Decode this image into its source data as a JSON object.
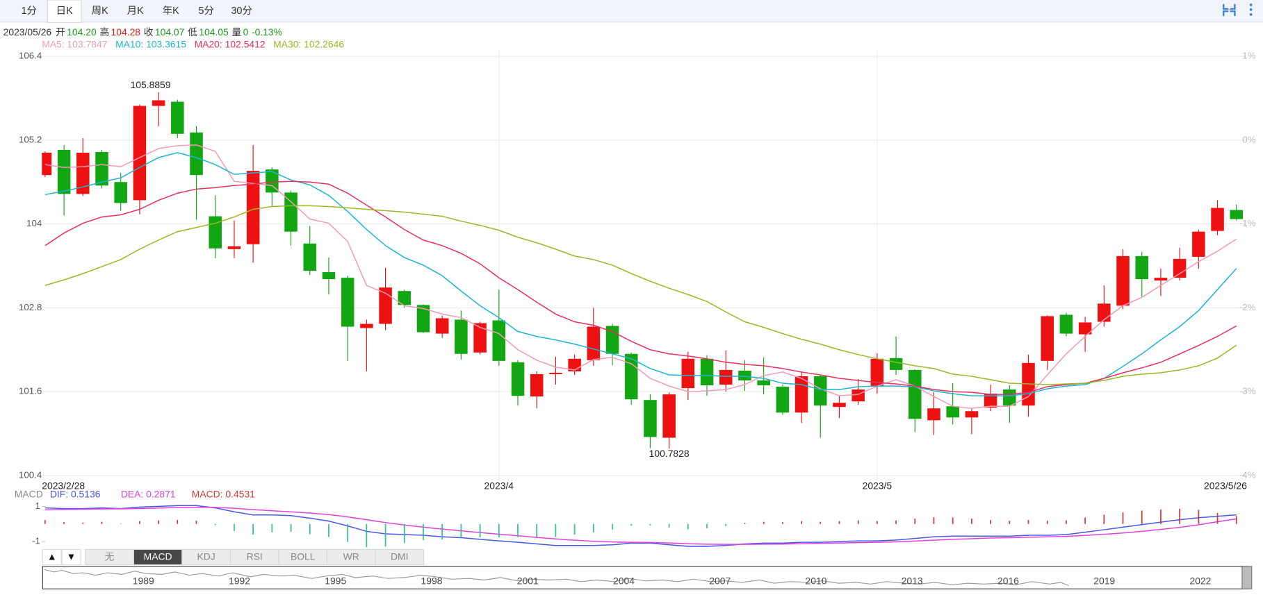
{
  "toolbar": {
    "tabs": [
      "1分",
      "日K",
      "周K",
      "月K",
      "年K",
      "5分",
      "30分"
    ],
    "active": 1
  },
  "quote": {
    "date": "2023/05/26",
    "fields": [
      {
        "label": "开",
        "value": "104.20",
        "color": "#1a9a1a"
      },
      {
        "label": "高",
        "value": "104.28",
        "color": "#e01818"
      },
      {
        "label": "收",
        "value": "104.07",
        "color": "#1a9a1a"
      },
      {
        "label": "低",
        "value": "104.05",
        "color": "#1a9a1a"
      },
      {
        "label": "量",
        "value": "0",
        "color": "#1a9a1a"
      }
    ],
    "change": "-0.13%",
    "change_color": "#1a9a1a"
  },
  "chart_data": [
    {
      "type": "candlestick",
      "categories": [
        "2023/2/28",
        null,
        null,
        null,
        null,
        null,
        null,
        null,
        null,
        null,
        null,
        null,
        null,
        null,
        null,
        null,
        null,
        null,
        null,
        null,
        null,
        null,
        null,
        null,
        "2023/4",
        null,
        null,
        null,
        null,
        null,
        null,
        null,
        null,
        null,
        null,
        null,
        null,
        null,
        null,
        null,
        null,
        null,
        null,
        null,
        "2023/5",
        null,
        null,
        null,
        null,
        null,
        null,
        null,
        null,
        null,
        null,
        null,
        null,
        null,
        null,
        null,
        null,
        null,
        null,
        "2023/5/26"
      ],
      "open": [
        104.7,
        105.06,
        104.43,
        105.03,
        104.6,
        104.34,
        105.69,
        105.75,
        105.31,
        104.11,
        103.64,
        103.71,
        104.78,
        104.45,
        103.72,
        103.31,
        103.23,
        102.51,
        102.57,
        103.04,
        102.84,
        102.43,
        102.63,
        102.16,
        102.62,
        102.02,
        101.53,
        101.85,
        101.89,
        102.05,
        102.54,
        102.14,
        101.48,
        100.94,
        101.65,
        102.07,
        101.7,
        101.9,
        101.76,
        101.67,
        101.3,
        101.82,
        101.38,
        101.46,
        101.68,
        102.08,
        101.91,
        101.19,
        101.39,
        101.23,
        101.37,
        101.63,
        101.4,
        102.04,
        102.7,
        102.42,
        102.6,
        102.83,
        103.54,
        103.19,
        103.23,
        103.53,
        103.9,
        104.2
      ],
      "high": [
        105.04,
        105.13,
        105.23,
        105.06,
        104.73,
        105.71,
        105.8859,
        105.78,
        105.4,
        104.41,
        104.05,
        105.13,
        104.81,
        104.48,
        103.97,
        103.52,
        103.26,
        102.63,
        103.37,
        103.06,
        102.85,
        102.69,
        102.76,
        102.6,
        103.06,
        102.05,
        101.89,
        102.1,
        102.13,
        102.8,
        102.57,
        102.16,
        101.56,
        101.59,
        102.17,
        102.12,
        102.19,
        102.05,
        102.09,
        101.7,
        101.89,
        101.84,
        101.54,
        101.78,
        102.15,
        102.39,
        101.92,
        101.59,
        101.72,
        101.36,
        101.7,
        101.69,
        102.13,
        102.69,
        102.73,
        102.67,
        103.12,
        103.64,
        103.6,
        103.36,
        103.66,
        103.92,
        104.34,
        104.28
      ],
      "low": [
        104.67,
        104.12,
        104.4,
        104.51,
        104.19,
        104.14,
        105.4,
        105.23,
        104.06,
        103.51,
        103.51,
        103.45,
        104.26,
        103.69,
        103.27,
        102.99,
        102.04,
        101.89,
        102.48,
        102.8,
        102.44,
        102.37,
        102.06,
        102.13,
        101.97,
        101.4,
        101.36,
        101.7,
        101.84,
        101.97,
        101.98,
        101.41,
        100.79,
        100.7828,
        101.48,
        101.54,
        101.6,
        101.61,
        101.56,
        101.27,
        101.15,
        100.94,
        101.22,
        101.41,
        101.57,
        101.84,
        101.02,
        100.98,
        101.13,
        100.99,
        101.32,
        101.15,
        101.24,
        101.91,
        102.39,
        102.17,
        102.53,
        102.78,
        102.96,
        102.97,
        103.19,
        103.36,
        103.84,
        104.05
      ],
      "close": [
        105.02,
        104.43,
        105.02,
        104.55,
        104.3,
        105.69,
        105.77,
        105.29,
        104.7,
        103.65,
        103.68,
        104.76,
        104.45,
        103.89,
        103.33,
        103.21,
        102.53,
        102.57,
        103.09,
        102.84,
        102.45,
        102.65,
        102.14,
        102.58,
        102.04,
        101.54,
        101.85,
        101.87,
        102.07,
        102.53,
        102.14,
        101.49,
        100.95,
        101.56,
        102.07,
        101.69,
        101.91,
        101.76,
        101.69,
        101.3,
        101.82,
        101.4,
        101.44,
        101.63,
        102.07,
        101.91,
        101.21,
        101.36,
        101.23,
        101.32,
        101.57,
        101.4,
        102.01,
        102.68,
        102.43,
        102.59,
        102.86,
        103.54,
        103.21,
        103.23,
        103.5,
        103.89,
        104.23,
        104.07
      ],
      "up_color": "#ee1111",
      "down_color": "#13a613",
      "series": [
        {
          "name": "MA5: 103.7847",
          "color": "#f49ab8",
          "values": [
            104.85,
            104.81,
            104.82,
            104.85,
            104.82,
            104.95,
            105.08,
            105.12,
            105.13,
            105.04,
            104.61,
            104.58,
            104.55,
            104.32,
            104.07,
            104.01,
            103.75,
            103.12,
            103.01,
            102.83,
            102.79,
            102.71,
            102.66,
            102.52,
            102.43,
            102.2,
            102.05,
            101.95,
            101.91,
            102.06,
            102.09,
            102.0,
            101.79,
            101.68,
            101.6,
            101.61,
            101.63,
            101.7,
            101.83,
            101.88,
            101.79,
            101.64,
            101.54,
            101.56,
            101.68,
            101.77,
            101.68,
            101.53,
            101.39,
            101.36,
            101.39,
            101.39,
            101.53,
            101.84,
            102.14,
            102.39,
            102.63,
            102.83,
            102.95,
            103.12,
            103.29,
            103.46,
            103.61,
            103.7847
          ]
        },
        {
          "name": "MA10: 103.3615",
          "color": "#1cb5d1",
          "values": [
            104.42,
            104.47,
            104.53,
            104.6,
            104.66,
            104.81,
            104.95,
            105.02,
            104.95,
            104.85,
            104.71,
            104.73,
            104.75,
            104.63,
            104.56,
            104.41,
            104.18,
            103.92,
            103.69,
            103.52,
            103.41,
            103.26,
            103.04,
            102.83,
            102.66,
            102.46,
            102.39,
            102.34,
            102.28,
            102.21,
            102.14,
            102.07,
            101.93,
            101.84,
            101.83,
            101.83,
            101.82,
            101.82,
            101.79,
            101.72,
            101.7,
            101.63,
            101.63,
            101.67,
            101.68,
            101.68,
            101.67,
            101.61,
            101.57,
            101.54,
            101.54,
            101.54,
            101.57,
            101.64,
            101.68,
            101.7,
            101.79,
            101.96,
            102.14,
            102.34,
            102.53,
            102.76,
            103.06,
            103.3615
          ]
        },
        {
          "name": "MA20: 102.5412",
          "color": "#e8305c",
          "values": [
            103.69,
            103.87,
            104.01,
            104.1,
            104.13,
            104.21,
            104.34,
            104.44,
            104.5,
            104.52,
            104.55,
            104.57,
            104.6,
            104.61,
            104.6,
            104.57,
            104.44,
            104.27,
            104.1,
            103.92,
            103.77,
            103.69,
            103.58,
            103.43,
            103.23,
            103.06,
            102.88,
            102.71,
            102.6,
            102.55,
            102.46,
            102.32,
            102.2,
            102.14,
            102.11,
            102.07,
            102.02,
            101.99,
            101.97,
            101.93,
            101.88,
            101.84,
            101.79,
            101.76,
            101.73,
            101.71,
            101.68,
            101.63,
            101.6,
            101.59,
            101.56,
            101.56,
            101.59,
            101.67,
            101.7,
            101.72,
            101.79,
            101.87,
            101.94,
            102.02,
            102.14,
            102.26,
            102.39,
            102.5412
          ]
        },
        {
          "name": "MA30: 102.2646",
          "color": "#99b824",
          "values": [
            103.12,
            103.2,
            103.29,
            103.39,
            103.49,
            103.64,
            103.77,
            103.89,
            103.95,
            104.01,
            104.1,
            104.21,
            104.25,
            104.26,
            104.26,
            104.25,
            104.23,
            104.21,
            104.19,
            104.17,
            104.14,
            104.11,
            104.04,
            103.98,
            103.91,
            103.81,
            103.73,
            103.64,
            103.54,
            103.49,
            103.41,
            103.29,
            103.18,
            103.08,
            102.99,
            102.89,
            102.74,
            102.6,
            102.52,
            102.43,
            102.35,
            102.28,
            102.2,
            102.13,
            102.07,
            102.02,
            101.97,
            101.93,
            101.85,
            101.82,
            101.77,
            101.72,
            101.71,
            101.7,
            101.71,
            101.72,
            101.76,
            101.82,
            101.85,
            101.87,
            101.91,
            101.97,
            102.08,
            102.2646
          ]
        }
      ],
      "ylim": [
        100.4,
        106.4
      ],
      "yticks": [
        100.4,
        101.6,
        102.8,
        104,
        105.2,
        106.4
      ],
      "y2lim": [
        -4,
        1
      ],
      "y2ticks": [
        {
          "value": -4,
          "label": "-4%"
        },
        {
          "value": -3,
          "label": "-3%"
        },
        {
          "value": -2,
          "label": "-2%"
        },
        {
          "value": -1,
          "label": "-1%"
        },
        {
          "value": 0,
          "label": "0%"
        },
        {
          "value": 1,
          "label": "1%"
        }
      ],
      "grid": true
    },
    {
      "type": "macd",
      "title": "MACD",
      "series": [
        {
          "name": "DIF: 0.5136",
          "color": "#4a56e8",
          "kind": "line",
          "values": [
            0.91,
            0.87,
            0.87,
            0.91,
            0.87,
            0.96,
            1.0,
            1.04,
            1.04,
            0.91,
            0.69,
            0.51,
            0.51,
            0.47,
            0.33,
            0.16,
            -0.11,
            -0.42,
            -0.56,
            -0.6,
            -0.64,
            -0.73,
            -0.78,
            -0.87,
            -0.96,
            -1.04,
            -1.13,
            -1.22,
            -1.22,
            -1.22,
            -1.18,
            -1.09,
            -1.09,
            -1.18,
            -1.27,
            -1.27,
            -1.22,
            -1.13,
            -1.09,
            -1.09,
            -1.04,
            -1.04,
            -1.0,
            -0.96,
            -0.96,
            -0.91,
            -0.82,
            -0.73,
            -0.69,
            -0.69,
            -0.69,
            -0.69,
            -0.64,
            -0.64,
            -0.6,
            -0.47,
            -0.33,
            -0.18,
            -0.04,
            0.1,
            0.24,
            0.35,
            0.44,
            0.5136
          ]
        },
        {
          "name": "DEA: 0.2871",
          "color": "#e040e0",
          "kind": "line",
          "values": [
            0.8,
            0.82,
            0.83,
            0.85,
            0.86,
            0.88,
            0.9,
            0.93,
            0.95,
            0.94,
            0.89,
            0.81,
            0.75,
            0.69,
            0.62,
            0.53,
            0.4,
            0.24,
            0.08,
            -0.06,
            -0.18,
            -0.29,
            -0.39,
            -0.49,
            -0.58,
            -0.67,
            -0.76,
            -0.85,
            -0.92,
            -0.98,
            -1.02,
            -1.04,
            -1.05,
            -1.08,
            -1.12,
            -1.15,
            -1.16,
            -1.16,
            -1.15,
            -1.14,
            -1.12,
            -1.1,
            -1.08,
            -1.06,
            -1.04,
            -1.01,
            -0.97,
            -0.92,
            -0.87,
            -0.84,
            -0.8,
            -0.78,
            -0.75,
            -0.73,
            -0.7,
            -0.65,
            -0.59,
            -0.51,
            -0.42,
            -0.31,
            -0.19,
            -0.05,
            0.13,
            0.2871
          ]
        },
        {
          "name": "MACD: 0.4531",
          "color": "#d03838",
          "negative_color": "#2fbf9a",
          "kind": "bar",
          "values": [
            0.22,
            0.1,
            0.08,
            0.12,
            0.02,
            0.16,
            0.2,
            0.22,
            0.18,
            -0.06,
            -0.4,
            -0.6,
            -0.48,
            -0.44,
            -0.58,
            -0.74,
            -1.02,
            -1.32,
            -1.28,
            -1.08,
            -0.92,
            -0.88,
            -0.78,
            -0.76,
            -0.76,
            -0.74,
            -0.74,
            -0.74,
            -0.6,
            -0.48,
            -0.32,
            -0.1,
            -0.08,
            -0.2,
            -0.3,
            -0.24,
            -0.12,
            0.06,
            0.12,
            0.1,
            0.16,
            0.12,
            0.16,
            0.2,
            0.16,
            0.2,
            0.3,
            0.38,
            0.36,
            0.3,
            0.22,
            0.18,
            0.22,
            0.18,
            0.2,
            0.36,
            0.52,
            0.66,
            0.76,
            0.82,
            0.86,
            0.8,
            0.62,
            0.4531
          ]
        }
      ],
      "ylim": [
        -1.4,
        1.2
      ],
      "yticks": [
        -1,
        1
      ]
    }
  ],
  "indicator_bar": {
    "arrows": [
      "▲",
      "▼"
    ],
    "tabs": [
      "无",
      "MACD",
      "KDJ",
      "RSI",
      "BOLL",
      "WR",
      "DMI"
    ],
    "active": 1
  },
  "navigator": {
    "years": [
      "1989",
      "1992",
      "1995",
      "1998",
      "2001",
      "2004",
      "2007",
      "2010",
      "2013",
      "2016",
      "2019",
      "2022"
    ]
  }
}
